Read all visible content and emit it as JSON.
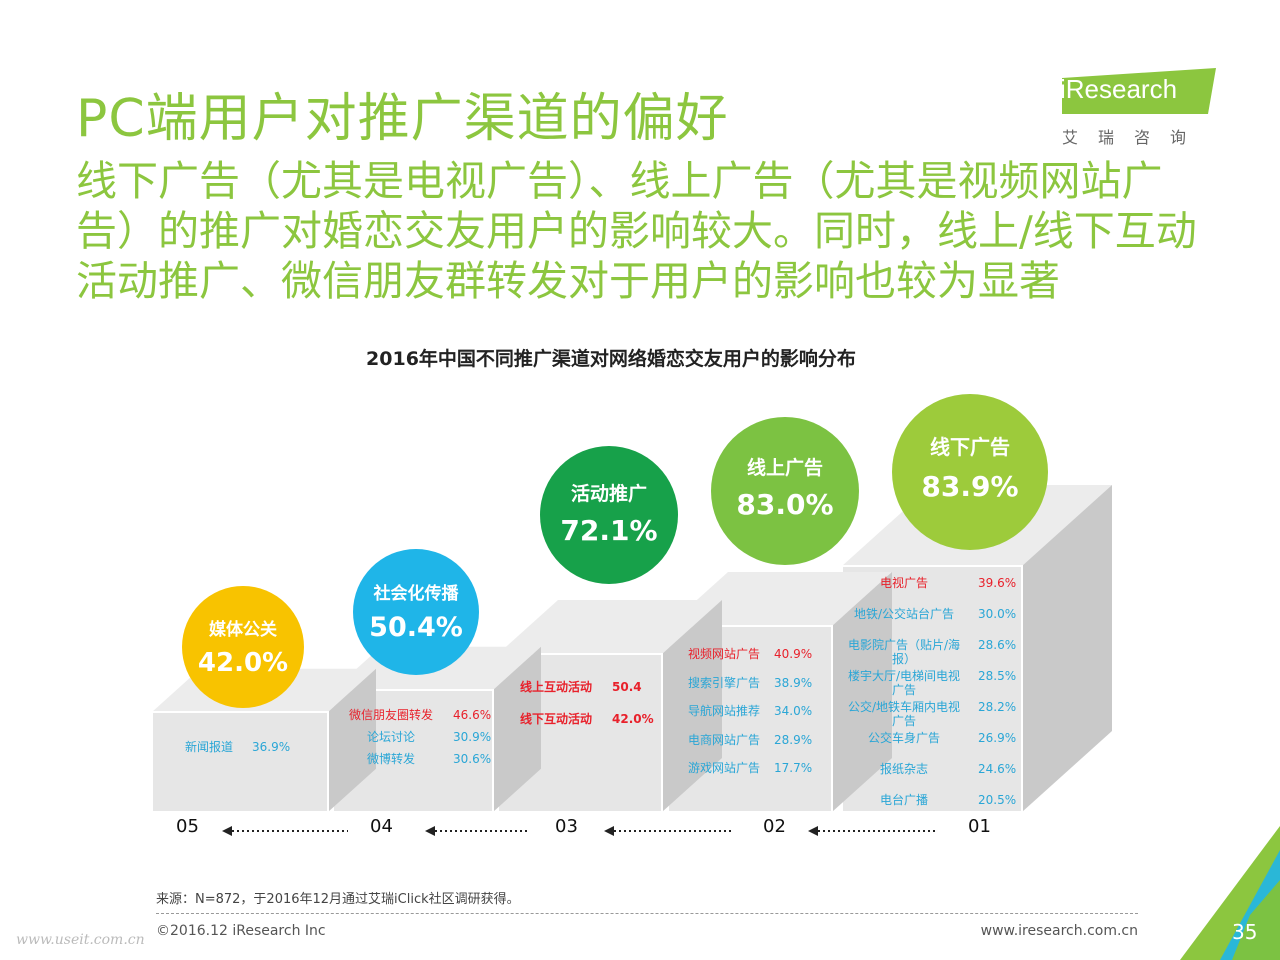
{
  "header": {
    "title": "PC端用户对推广渠道的偏好",
    "subtitle": "线下广告（尤其是电视广告）、线上广告（尤其是视频网站广告）的推广对婚恋交友用户的影响较大。同时，线上/线下互动活动推广、微信朋友群转发对于用户的影响也较为显著"
  },
  "logo": {
    "brand": "iResearch",
    "sub": "艾瑞咨询"
  },
  "colors": {
    "accent": "#8cc63f",
    "circle_05": "#f8c300",
    "circle_04": "#1fb5e8",
    "circle_03": "#17a14a",
    "circle_02": "#7cc242",
    "circle_01": "#9dcb3b",
    "label_red": "#e8212b",
    "label_blue": "#2aa6d6"
  },
  "chart_data": {
    "type": "table",
    "title": "2016年中国不同推广渠道对网络婚恋交友用户的影响分布",
    "steps": [
      {
        "step": "05",
        "channel": "媒体公关",
        "value": "42.0%",
        "items": [
          {
            "name": "新闻报道",
            "value": "36.9%",
            "color": "blue"
          }
        ]
      },
      {
        "step": "04",
        "channel": "社会化传播",
        "value": "50.4%",
        "items": [
          {
            "name": "微信朋友圈转发",
            "value": "46.6%",
            "color": "red"
          },
          {
            "name": "论坛讨论",
            "value": "30.9%",
            "color": "blue"
          },
          {
            "name": "微博转发",
            "value": "30.6%",
            "color": "blue"
          }
        ]
      },
      {
        "step": "03",
        "channel": "活动推广",
        "value": "72.1%",
        "items": [
          {
            "name": "线上互动活动",
            "value": "50.4",
            "color": "red"
          },
          {
            "name": "线下互动活动",
            "value": "42.0%",
            "color": "red"
          }
        ]
      },
      {
        "step": "02",
        "channel": "线上广告",
        "value": "83.0%",
        "items": [
          {
            "name": "视频网站广告",
            "value": "40.9%",
            "color": "red"
          },
          {
            "name": "搜索引擎广告",
            "value": "38.9%",
            "color": "blue"
          },
          {
            "name": "导航网站推荐",
            "value": "34.0%",
            "color": "blue"
          },
          {
            "name": "电商网站广告",
            "value": "28.9%",
            "color": "blue"
          },
          {
            "name": "游戏网站广告",
            "value": "17.7%",
            "color": "blue"
          }
        ]
      },
      {
        "step": "01",
        "channel": "线下广告",
        "value": "83.9%",
        "items": [
          {
            "name": "电视广告",
            "value": "39.6%",
            "color": "red"
          },
          {
            "name": "地铁/公交站台广告",
            "value": "30.0%",
            "color": "blue"
          },
          {
            "name": "电影院广告（贴片/海报）",
            "value": "28.6%",
            "color": "blue"
          },
          {
            "name": "楼宇大厅/电梯间电视广告",
            "value": "28.5%",
            "color": "blue"
          },
          {
            "name": "公交/地铁车厢内电视广告",
            "value": "28.2%",
            "color": "blue"
          },
          {
            "name": "公交车身广告",
            "value": "26.9%",
            "color": "blue"
          },
          {
            "name": "报纸杂志",
            "value": "24.6%",
            "color": "blue"
          },
          {
            "name": "电台广播",
            "value": "20.5%",
            "color": "blue"
          }
        ]
      }
    ]
  },
  "footer": {
    "source": "来源：N=872，于2016年12月通过艾瑞iClick社区调研获得。",
    "copyright": "©2016.12 iResearch Inc",
    "site": "www.iresearch.com.cn",
    "page": "35",
    "watermark": "www.useit.com.cn"
  }
}
